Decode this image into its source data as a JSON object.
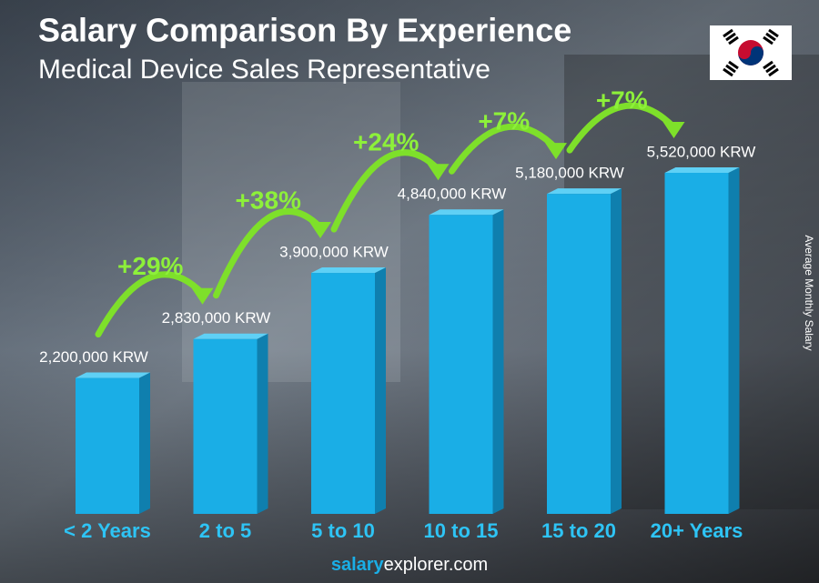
{
  "chart_data": {
    "type": "bar",
    "title": "Salary Comparison By Experience",
    "subtitle": "Medical Device Sales Representative",
    "y_axis_label": "Average Monthly Salary",
    "categories": [
      "< 2 Years",
      "2 to 5",
      "5 to 10",
      "10 to 15",
      "15 to 20",
      "20+ Years"
    ],
    "values": [
      2200000,
      2830000,
      3900000,
      4840000,
      5180000,
      5520000
    ],
    "value_labels": [
      "2,200,000 KRW",
      "2,830,000 KRW",
      "3,900,000 KRW",
      "4,840,000 KRW",
      "5,180,000 KRW",
      "5,520,000 KRW"
    ],
    "increments": [
      "+29%",
      "+38%",
      "+24%",
      "+7%",
      "+7%"
    ],
    "color": "#1aaee6",
    "footer": {
      "bold": "salary",
      "rest": "explorer.com"
    }
  }
}
